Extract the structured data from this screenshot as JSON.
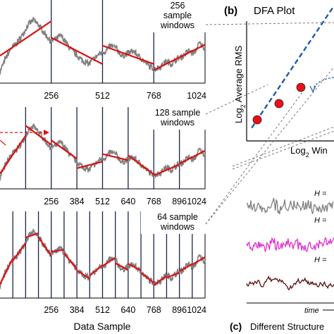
{
  "panel_a": {
    "xlabel": "Data Sample",
    "rows": [
      {
        "window_label": [
          "256",
          "sample",
          "windows"
        ],
        "ticks": [
          "256",
          "512",
          "768",
          "1024"
        ],
        "boundaries": [
          256,
          512,
          768
        ]
      },
      {
        "window_label": [
          "128 sample",
          "windows"
        ],
        "ticks": [
          "256",
          "384",
          "512",
          "640",
          "768",
          "896",
          "1024"
        ],
        "boundaries": [
          128,
          256,
          384,
          512,
          640,
          768,
          896
        ]
      },
      {
        "window_label": [
          "64 sample",
          "windows"
        ],
        "ticks": [
          "256",
          "384",
          "512",
          "640",
          "768",
          "896",
          "1024"
        ],
        "boundaries": [
          64,
          128,
          192,
          256,
          320,
          384,
          448,
          512,
          576,
          640,
          704,
          768,
          832,
          896,
          960
        ]
      }
    ],
    "colors": {
      "signal": "#808080",
      "fit": "#dd1111",
      "boundary": "#1a2350",
      "pointer": "#dd1111"
    }
  },
  "panel_b": {
    "letter": "(b)",
    "title": "DFA Plot",
    "ylabel": "Log",
    "ylabel_sub": "2",
    "ylabel_rest": " Average RMS",
    "xlabel": "Log",
    "xlabel_sub": "2",
    "xlabel_rest": " Win",
    "colors": {
      "point": "#e8101a",
      "fit": "#1f5aa8"
    }
  },
  "panel_c": {
    "letter": "(c)",
    "title": "Different Structure",
    "time_label": "time",
    "h_label": "H =",
    "colors": {
      "gray": "#808080",
      "magenta": "#e030d0",
      "brown": "#5a1010"
    }
  },
  "chart_data": [
    {
      "type": "line",
      "panel": "(a)",
      "xlabel": "Data Sample",
      "xlim": [
        0,
        1024
      ],
      "series": [
        {
          "values": [
            0.0,
            0.25,
            0.45,
            0.55,
            0.7,
            0.9,
            1.0,
            0.9,
            0.75,
            0.6,
            0.62,
            0.7,
            0.55,
            0.4,
            0.3,
            0.2,
            0.15,
            0.25,
            0.35,
            0.4,
            0.5,
            0.45,
            0.3,
            0.35,
            0.4,
            0.3,
            0.2,
            0.1,
            0.05,
            0.1,
            0.2,
            0.15,
            0.25,
            0.3,
            0.4,
            0.35,
            0.55,
            0.45
          ]
        }
      ]
    },
    {
      "type": "scatter",
      "panel": "(b)",
      "title": "DFA Plot",
      "x": [
        0,
        1,
        2
      ],
      "y": [
        0.0,
        0.5,
        1.0
      ]
    }
  ]
}
